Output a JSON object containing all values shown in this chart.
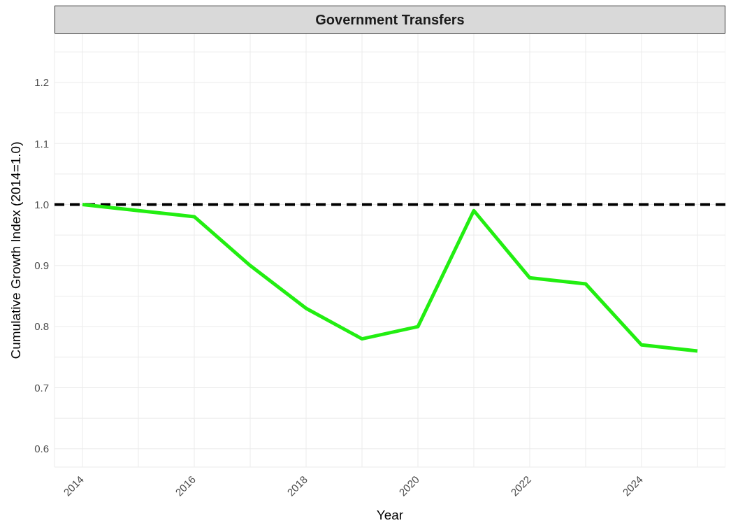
{
  "chart_data": {
    "type": "line",
    "title": "Government Transfers",
    "xlabel": "Year",
    "ylabel": "Cumulative Growth Index (2014=1.0)",
    "x": [
      2014,
      2015,
      2016,
      2017,
      2018,
      2019,
      2020,
      2021,
      2022,
      2023,
      2024,
      2025
    ],
    "series": [
      {
        "color": "#22ee11",
        "values": [
          1.0,
          0.99,
          0.98,
          0.9,
          0.83,
          0.78,
          0.8,
          0.99,
          0.88,
          0.87,
          0.77,
          0.76
        ]
      }
    ],
    "xlim": [
      2013.5,
      2025.5
    ],
    "xticks": [
      2014,
      {
        "value": 2015,
        "label": null
      },
      2016,
      {
        "value": 2017,
        "label": null
      },
      2018,
      {
        "value": 2019,
        "label": null
      },
      2020,
      {
        "value": 2021,
        "label": null
      },
      2022,
      {
        "value": 2023,
        "label": null
      },
      2024,
      {
        "value": 2025,
        "label": null
      }
    ],
    "ylim": [
      0.57,
      1.28
    ],
    "yticks": [
      0.6,
      {
        "value": 0.65,
        "label": null
      },
      0.7,
      {
        "value": 0.75,
        "label": null
      },
      0.8,
      {
        "value": 0.85,
        "label": null
      },
      0.9,
      {
        "value": 0.95,
        "label": null
      },
      {
        "value": 1.0,
        "label": "1.0"
      },
      {
        "value": 1.05,
        "label": null
      },
      1.1,
      {
        "value": 1.15,
        "label": null
      },
      1.2,
      {
        "value": 1.25,
        "label": null
      }
    ],
    "ref_lines": [
      {
        "axis": "y",
        "value": 1.0,
        "color": "#000000",
        "line_style": "dashed"
      }
    ],
    "grid": true,
    "line_style": "solid",
    "marker": "none",
    "legend": false
  }
}
